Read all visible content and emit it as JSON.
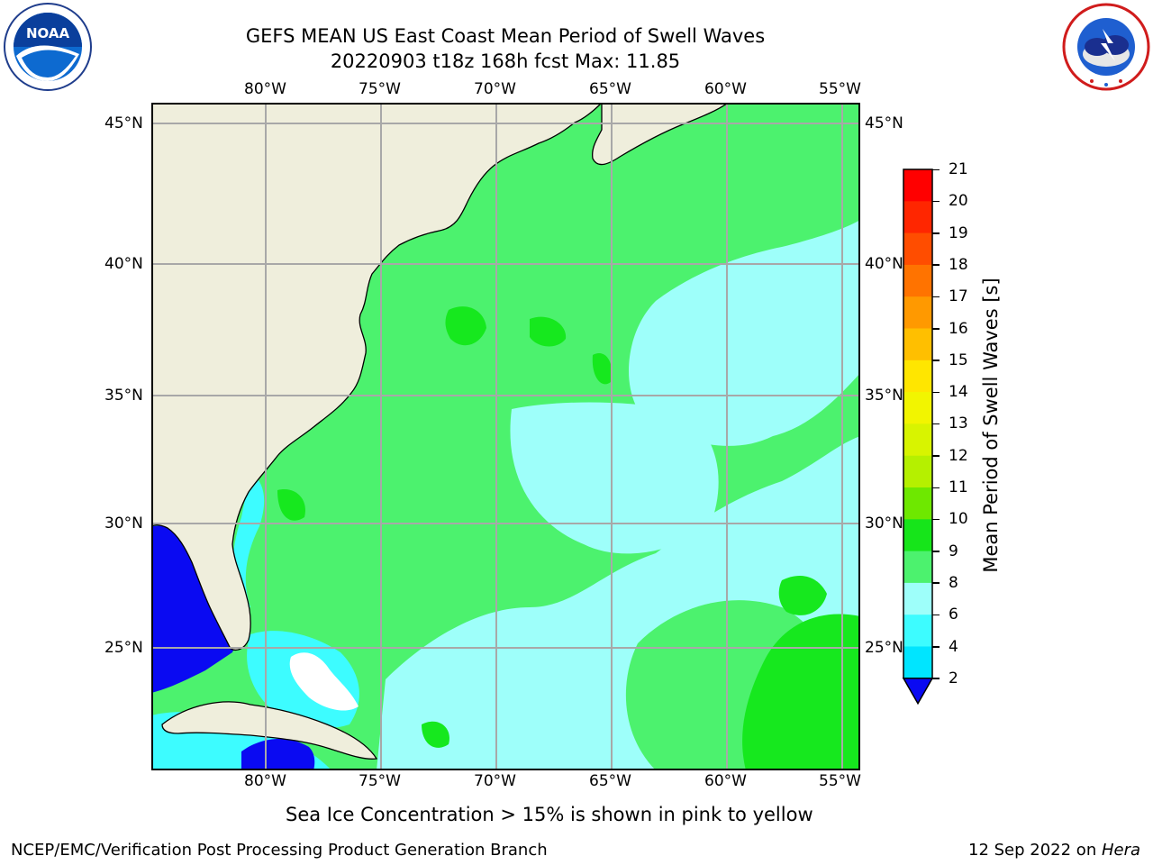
{
  "header": {
    "title_line1": "GEFS MEAN US East Coast Mean Period of Swell Waves",
    "title_line2": "20220903 t18z 168h fcst   Max: 11.85"
  },
  "logos": {
    "left": {
      "name": "NOAA",
      "ring_text": "NATIONAL OCEANIC AND ATMOSPHERIC ADMINISTRATION",
      "bottom_text": "U.S. DEPARTMENT OF COMMERCE"
    },
    "right": {
      "ring_text": "NATIONAL WEATHER SERVICE"
    }
  },
  "map": {
    "lon_labels": [
      "80°W",
      "75°W",
      "70°W",
      "65°W",
      "60°W",
      "55°W"
    ],
    "lat_labels": [
      "45°N",
      "40°N",
      "35°N",
      "30°N",
      "25°N"
    ],
    "land_color": "#efeedc",
    "field_colors": {
      "light_green": "#4cf26e",
      "green": "#16e81e",
      "light_cyan": "#9efffa",
      "cyan": "#3dfcff",
      "deep_blue": "#0a0af2",
      "white": "#ffffff"
    }
  },
  "colorbar": {
    "label": "Mean Period of Swell Waves [s]",
    "ticks": [
      "21",
      "20",
      "19",
      "18",
      "17",
      "16",
      "15",
      "14",
      "13",
      "12",
      "11",
      "10",
      "9",
      "8",
      "6",
      "4",
      "2"
    ],
    "colors": [
      "#ff0000",
      "#ff2600",
      "#ff4d00",
      "#ff7300",
      "#ff9900",
      "#ffbf00",
      "#ffe600",
      "#f2f500",
      "#d8f400",
      "#b5f000",
      "#6ee800",
      "#16e51a",
      "#4cf26e",
      "#9efffa",
      "#3dfcff",
      "#00e5ff",
      "#0073ff"
    ],
    "extend_color": "#0a0af2"
  },
  "caption": "Sea Ice Concentration > 15% is shown in pink to yellow",
  "footer": {
    "left": "NCEP/EMC/Verification Post Processing Product Generation Branch",
    "date": "12 Sep 2022 on ",
    "machine": "Hera"
  }
}
